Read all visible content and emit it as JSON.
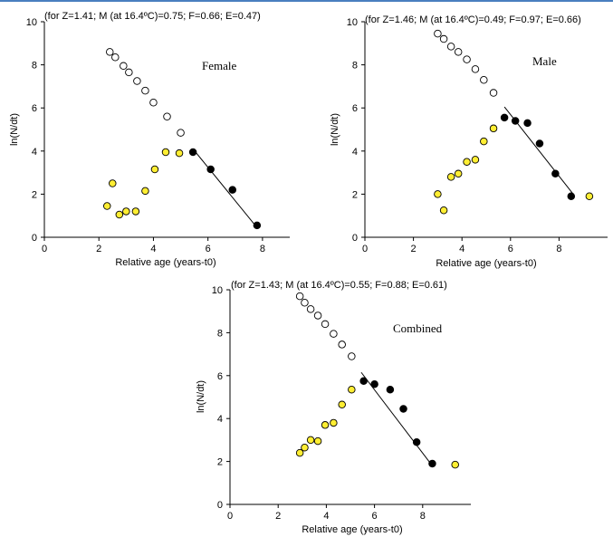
{
  "colors": {
    "top_rule": "#4a7fbf",
    "yellow_fill": "#ffee33",
    "point_stroke": "#000000"
  },
  "chart_data": [
    {
      "type": "scatter",
      "title": "Female",
      "annotation": "(for Z=1.41; M (at 16.4ºC)=0.75; F=0.66; E=0.47)",
      "xlabel": "Relative age (years-t0)",
      "ylabel": "ln(N/dt)",
      "xlim": [
        0,
        9
      ],
      "ylim": [
        0,
        10
      ],
      "xticks": [
        "0",
        "2",
        "4",
        "6",
        "8"
      ],
      "yticks": [
        "0",
        "2",
        "4",
        "6",
        "8",
        "10"
      ],
      "series": [
        {
          "style": "open",
          "x": [
            2.4,
            2.6,
            2.9,
            3.1,
            3.4,
            3.7,
            4.0,
            4.5,
            5.0
          ],
          "y": [
            8.6,
            8.35,
            7.95,
            7.65,
            7.25,
            6.8,
            6.25,
            5.6,
            4.85
          ]
        },
        {
          "style": "yellow",
          "x": [
            2.3,
            2.5,
            2.75,
            3.0,
            3.35,
            3.7,
            4.05,
            4.45,
            4.95
          ],
          "y": [
            1.45,
            2.5,
            1.05,
            1.2,
            1.2,
            2.15,
            3.15,
            3.95,
            3.9
          ]
        },
        {
          "style": "filled",
          "x": [
            5.45,
            6.1,
            6.9,
            7.8
          ],
          "y": [
            3.95,
            3.15,
            2.2,
            0.55
          ]
        }
      ],
      "regression": {
        "x": [
          5.45,
          7.8
        ],
        "y": [
          4.1,
          0.45
        ]
      }
    },
    {
      "type": "scatter",
      "title": "Male",
      "annotation": "(for Z=1.46; M (at 16.4ºC)=0.49; F=0.97; E=0.66)",
      "xlabel": "Relative age (years-t0)",
      "ylabel": "ln(N/dt)",
      "xlim": [
        0,
        10
      ],
      "ylim": [
        0,
        10
      ],
      "xticks": [
        "0",
        "2",
        "4",
        "6",
        "8"
      ],
      "yticks": [
        "0",
        "2",
        "4",
        "6",
        "8",
        "10"
      ],
      "series": [
        {
          "style": "open",
          "x": [
            3.0,
            3.25,
            3.55,
            3.85,
            4.2,
            4.55,
            4.9,
            5.3
          ],
          "y": [
            9.45,
            9.2,
            8.85,
            8.6,
            8.25,
            7.8,
            7.3,
            6.7
          ]
        },
        {
          "style": "yellow",
          "x": [
            3.0,
            3.25,
            3.55,
            3.85,
            4.2,
            4.55,
            4.9,
            5.3
          ],
          "y": [
            2.0,
            1.25,
            2.8,
            2.95,
            3.5,
            3.6,
            4.45,
            5.05
          ]
        },
        {
          "style": "filled",
          "x": [
            5.75,
            6.2,
            6.7,
            7.2,
            7.85,
            8.5
          ],
          "y": [
            5.55,
            5.4,
            5.3,
            4.35,
            2.95,
            1.9
          ]
        },
        {
          "style": "yellow",
          "x": [
            9.25
          ],
          "y": [
            1.9
          ]
        }
      ],
      "regression": {
        "x": [
          5.75,
          8.55
        ],
        "y": [
          6.05,
          2.05
        ]
      }
    },
    {
      "type": "scatter",
      "title": "Combined",
      "annotation": "(for Z=1.43; M (at 16.4ºC)=0.55; F=0.88; E=0.61)",
      "xlabel": "Relative age (years-t0)",
      "ylabel": "ln(N/dt)",
      "xlim": [
        0,
        10
      ],
      "ylim": [
        0,
        10
      ],
      "xticks": [
        "0",
        "2",
        "4",
        "6",
        "8"
      ],
      "yticks": [
        "0",
        "2",
        "4",
        "6",
        "8",
        "10"
      ],
      "series": [
        {
          "style": "open",
          "x": [
            2.9,
            3.1,
            3.35,
            3.65,
            3.95,
            4.3,
            4.65,
            5.05
          ],
          "y": [
            9.7,
            9.4,
            9.1,
            8.8,
            8.4,
            7.95,
            7.45,
            6.9
          ]
        },
        {
          "style": "yellow",
          "x": [
            2.9,
            3.1,
            3.35,
            3.65,
            3.95,
            4.3,
            4.65,
            5.05
          ],
          "y": [
            2.4,
            2.65,
            3.0,
            2.95,
            3.7,
            3.8,
            4.65,
            5.35
          ]
        },
        {
          "style": "filled",
          "x": [
            5.55,
            6.0,
            6.65,
            7.2,
            7.75,
            8.4
          ],
          "y": [
            5.75,
            5.6,
            5.35,
            4.45,
            2.9,
            1.9
          ]
        },
        {
          "style": "yellow",
          "x": [
            9.35
          ],
          "y": [
            1.85
          ]
        }
      ],
      "regression": {
        "x": [
          5.45,
          8.4
        ],
        "y": [
          6.15,
          1.8
        ]
      }
    }
  ]
}
